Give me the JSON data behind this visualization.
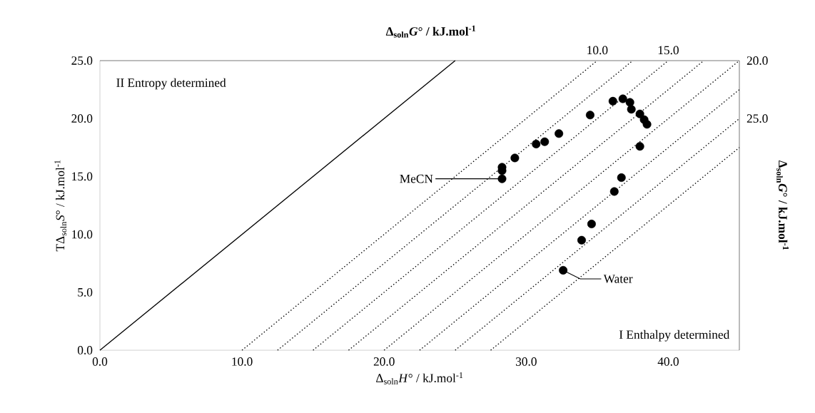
{
  "chart_data": {
    "type": "scatter",
    "xlabel": "Δ$_{soln}$*H*° / kJ.mol$^{-1}$",
    "ylabel": "TΔ$_{soln}$*S*° / kJ.mol$^{-1}$",
    "x2label": "Δ$_{soln}$*G*° / kJ.mol$^{-1}$",
    "y2label": "Δ$_{soln}$*G*° / kJ.mol$^{-1}$",
    "xlim": [
      0,
      45
    ],
    "ylim": [
      0,
      25
    ],
    "xticks": [
      {
        "value": 0,
        "label": "0.0"
      },
      {
        "value": 10,
        "label": "10.0"
      },
      {
        "value": 20,
        "label": "20.0"
      },
      {
        "value": 30,
        "label": "30.0"
      },
      {
        "value": 40,
        "label": "40.0"
      }
    ],
    "yticks": [
      {
        "value": 0,
        "label": "0.0"
      },
      {
        "value": 5,
        "label": "5.0"
      },
      {
        "value": 10,
        "label": "10.0"
      },
      {
        "value": 15,
        "label": "15.0"
      },
      {
        "value": 20,
        "label": "20.0"
      },
      {
        "value": 25,
        "label": "25.0"
      }
    ],
    "x2lim": [
      -25,
      20
    ],
    "x2ticks": [
      {
        "value": 10,
        "label": "10.0"
      },
      {
        "value": 15,
        "label": "15.0"
      }
    ],
    "y2lim": [
      45,
      20
    ],
    "y2ticks": [
      {
        "value": 20,
        "label": "20.0"
      },
      {
        "value": 25,
        "label": "25.0"
      }
    ],
    "annotations": [
      "II Entropy determined",
      "I Enthalpy determined",
      {
        "text": "MeCN",
        "x": 28.3,
        "y": 14.8
      },
      {
        "text": "Water",
        "x": 32.6,
        "y": 6.9
      }
    ],
    "series": [
      {
        "type": "line",
        "x": [
          0,
          25
        ],
        "values": [
          0,
          25
        ],
        "color": "#000000",
        "line_style": "solid",
        "marker": "none"
      },
      {
        "type": "line",
        "x": [
          10,
          35
        ],
        "values": [
          0,
          25
        ],
        "color": "#000000",
        "line_style": "dotted",
        "marker": "none"
      },
      {
        "type": "line",
        "x": [
          12.5,
          37.5
        ],
        "values": [
          0,
          25
        ],
        "color": "#000000",
        "line_style": "dotted",
        "marker": "none"
      },
      {
        "type": "line",
        "x": [
          15,
          40
        ],
        "values": [
          0,
          25
        ],
        "color": "#000000",
        "line_style": "dotted",
        "marker": "none"
      },
      {
        "type": "line",
        "x": [
          17.5,
          42.5
        ],
        "values": [
          0,
          25
        ],
        "color": "#000000",
        "line_style": "dotted",
        "marker": "none"
      },
      {
        "type": "line",
        "x": [
          20,
          45
        ],
        "values": [
          0,
          25
        ],
        "color": "#000000",
        "line_style": "dotted",
        "marker": "none"
      },
      {
        "type": "line",
        "x": [
          22.5,
          45
        ],
        "values": [
          0,
          22.5
        ],
        "color": "#000000",
        "line_style": "dotted",
        "marker": "none"
      },
      {
        "type": "line",
        "x": [
          25,
          45
        ],
        "values": [
          0,
          20
        ],
        "color": "#000000",
        "line_style": "dotted",
        "marker": "none"
      },
      {
        "type": "line",
        "x": [
          27.5,
          45
        ],
        "values": [
          0,
          17.5
        ],
        "color": "#000000",
        "line_style": "dotted",
        "marker": "none"
      },
      {
        "color": "#000000",
        "marker": "circle",
        "x": [
          28.3,
          28.3,
          28.3,
          29.2,
          30.7,
          31.3,
          32.3,
          34.5,
          36.1,
          36.8,
          37.3,
          37.4,
          38.0,
          38.3,
          38.5,
          38.0,
          36.7,
          36.2,
          34.6,
          33.9,
          32.6
        ],
        "values": [
          14.8,
          15.5,
          15.8,
          16.6,
          17.8,
          18.0,
          18.7,
          20.3,
          21.5,
          21.7,
          21.4,
          20.8,
          20.4,
          19.9,
          19.5,
          17.6,
          14.9,
          13.7,
          10.9,
          9.5,
          6.9
        ]
      }
    ]
  }
}
